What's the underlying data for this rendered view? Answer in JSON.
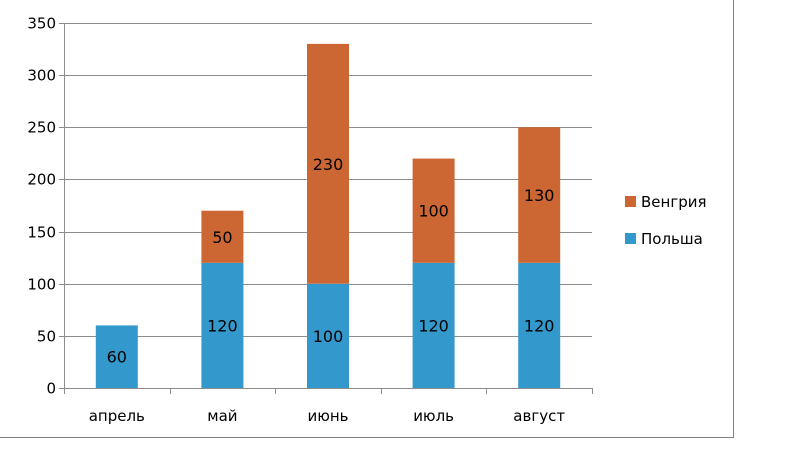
{
  "colors": {
    "Польша": "#3399cc",
    "Венгрия": "#cc6633",
    "gridline": "#8c8c8c",
    "axis": "#8c8c8c"
  },
  "chart_data": {
    "type": "bar",
    "stacked": true,
    "title": "",
    "xlabel": "",
    "ylabel": "",
    "categories": [
      "апрель",
      "май",
      "июнь",
      "июль",
      "август"
    ],
    "series": [
      {
        "name": "Польша",
        "values": [
          60,
          120,
          100,
          120,
          120
        ],
        "color": "#3399cc"
      },
      {
        "name": "Венгрия",
        "values": [
          0,
          50,
          230,
          100,
          130
        ],
        "color": "#cc6633"
      }
    ],
    "data_labels": {
      "Польша": [
        "60",
        "120",
        "100",
        "120",
        "120"
      ],
      "Венгрия": [
        "",
        "50",
        "230",
        "100",
        "130"
      ]
    },
    "ylim": [
      0,
      350
    ],
    "yticks": [
      0,
      50,
      100,
      150,
      200,
      250,
      300,
      350
    ],
    "grid": true,
    "legend": {
      "position": "right",
      "order": [
        "Венгрия",
        "Польша"
      ]
    }
  }
}
